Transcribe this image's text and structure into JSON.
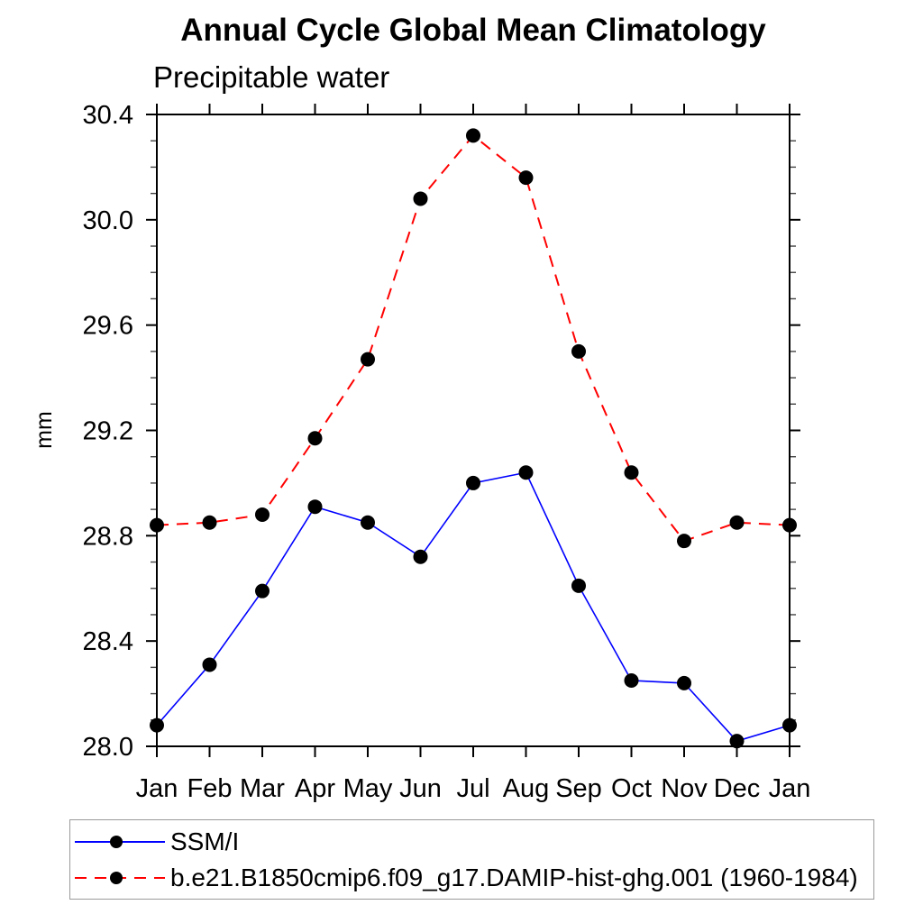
{
  "page": {
    "title": "Annual Cycle Global Mean Climatology",
    "subtitle": "Precipitable water"
  },
  "chart_data": {
    "type": "line",
    "title": "Annual Cycle Global Mean Climatology",
    "subtitle": "Precipitable water",
    "xlabel": "",
    "ylabel": "mm",
    "ylim": [
      28.0,
      30.4
    ],
    "ytick_major_interval": 0.4,
    "ytick_minor_interval": 0.1,
    "ytick_labels": [
      "28.0",
      "28.4",
      "28.8",
      "29.2",
      "29.6",
      "30.0",
      "30.4"
    ],
    "categories": [
      "Jan",
      "Feb",
      "Mar",
      "Apr",
      "May",
      "Jun",
      "Jul",
      "Aug",
      "Sep",
      "Oct",
      "Nov",
      "Dec",
      "Jan"
    ],
    "grid": false,
    "legend_position": "bottom",
    "axis_color": "#000000",
    "series": [
      {
        "name": "SSM/I",
        "line_color": "#0000ff",
        "line_style": "solid",
        "marker": "filled-circle",
        "marker_color": "#000000",
        "values": [
          28.08,
          28.31,
          28.59,
          28.91,
          28.85,
          28.72,
          29.0,
          29.04,
          28.61,
          28.25,
          28.24,
          28.02,
          28.08
        ]
      },
      {
        "name": "b.e21.B1850cmip6.f09_g17.DAMIP-hist-ghg.001 (1960-1984)",
        "line_color": "#ff0000",
        "line_style": "dashed",
        "marker": "filled-circle",
        "marker_color": "#000000",
        "values": [
          28.84,
          28.85,
          28.88,
          29.17,
          29.47,
          30.08,
          30.32,
          30.16,
          29.5,
          29.04,
          28.78,
          28.85,
          28.84
        ]
      }
    ]
  }
}
